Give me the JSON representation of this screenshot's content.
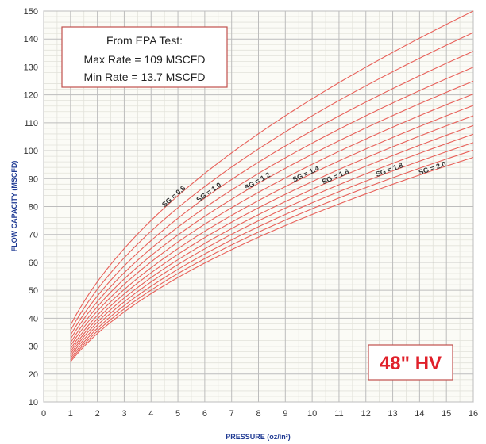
{
  "chart_data": {
    "type": "line",
    "title": "",
    "xlabel": "PRESSURE (oz/in²)",
    "ylabel": "FLOW CAPACITY (MSCFD)",
    "xlim": [
      0,
      16
    ],
    "ylim": [
      10,
      150
    ],
    "x_ticks": [
      "0",
      "1",
      "2",
      "3",
      "4",
      "5",
      "6",
      "7",
      "8",
      "9",
      "10",
      "11",
      "12",
      "13",
      "14",
      "15",
      "16"
    ],
    "y_ticks": [
      "10",
      "20",
      "30",
      "40",
      "50",
      "60",
      "70",
      "80",
      "90",
      "100",
      "110",
      "120",
      "130",
      "140",
      "150"
    ],
    "grid": true,
    "line_color": "#e8615a",
    "x": [
      1,
      16
    ],
    "series": [
      {
        "name": "SG = 0.8",
        "values": [
          37.5,
          150
        ]
      },
      {
        "name": "",
        "values": [
          35.6,
          142.3
        ]
      },
      {
        "name": "SG = 1.0",
        "values": [
          33.9,
          135.6
        ]
      },
      {
        "name": "",
        "values": [
          32.5,
          129.9
        ]
      },
      {
        "name": "SG = 1.2",
        "values": [
          31.2,
          124.9
        ]
      },
      {
        "name": "",
        "values": [
          30.1,
          120.3
        ]
      },
      {
        "name": "SG = 1.4",
        "values": [
          29.0,
          116.2
        ]
      },
      {
        "name": "",
        "values": [
          28.1,
          112.5
        ]
      },
      {
        "name": "SG = 1.6",
        "values": [
          27.3,
          109.0
        ]
      },
      {
        "name": "",
        "values": [
          26.5,
          105.9
        ]
      },
      {
        "name": "SG = 1.8",
        "values": [
          25.7,
          102.9
        ]
      },
      {
        "name": "",
        "values": [
          25.0,
          100.2
        ]
      },
      {
        "name": "SG = 2.0",
        "values": [
          24.4,
          97.6
        ]
      }
    ]
  },
  "info_box": {
    "line1": "From EPA Test:",
    "line2": "Max Rate = 109 MSCFD",
    "line3": "Min Rate = 13.7 MSCFD"
  },
  "model_label": {
    "text": "48\" HV",
    "color": "#e0202a"
  }
}
